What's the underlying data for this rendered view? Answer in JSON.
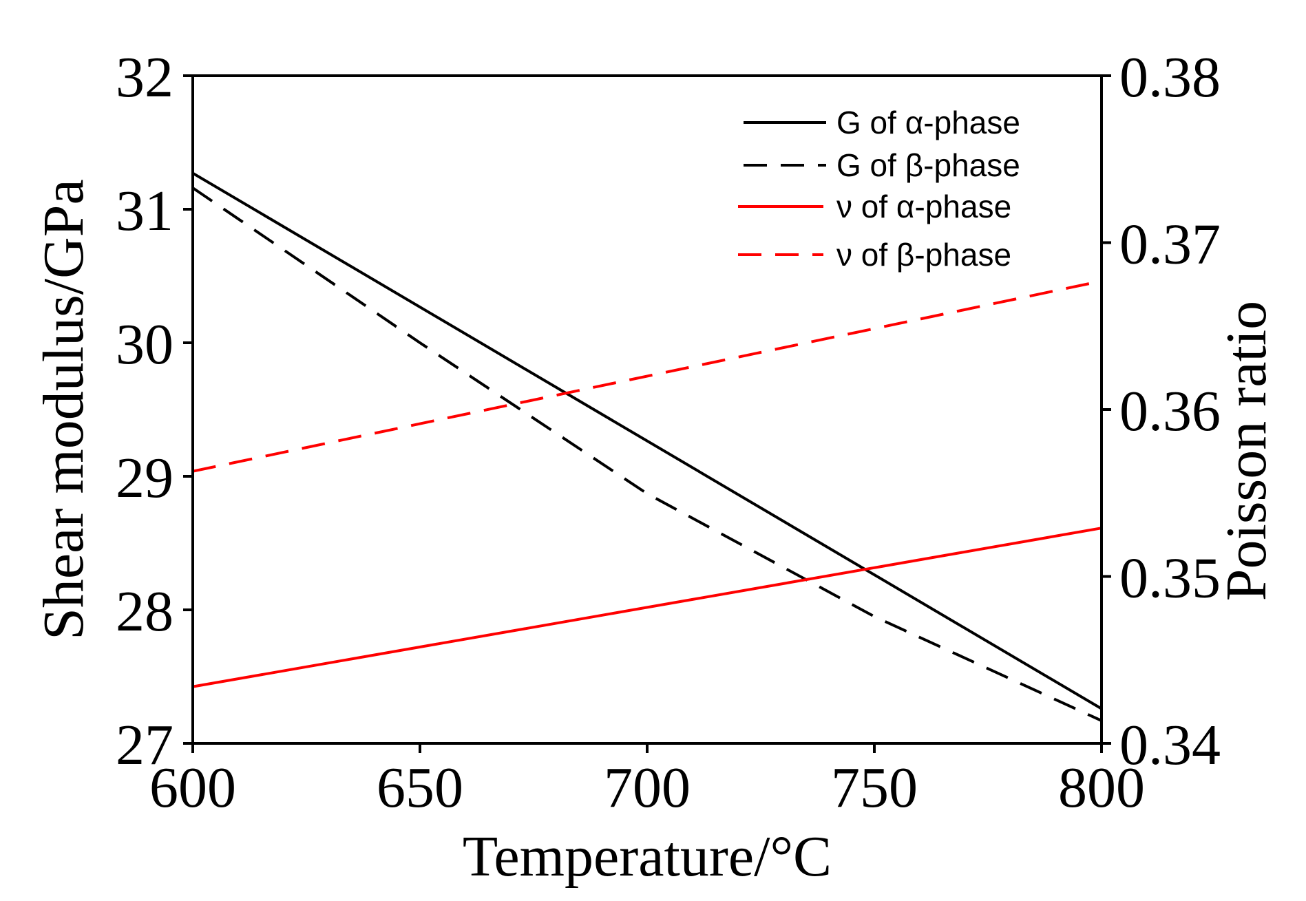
{
  "chart_data": {
    "type": "line",
    "xlabel": "Temperature/°C",
    "ylabel_left": "Shear modulus/GPa",
    "ylabel_right": "Poisson ratio",
    "xlim": [
      600,
      800
    ],
    "ylim_left": [
      27,
      32
    ],
    "ylim_right": [
      0.34,
      0.38
    ],
    "xticks": [
      "600",
      "650",
      "700",
      "750",
      "800"
    ],
    "yticks_left": [
      "27",
      "28",
      "29",
      "30",
      "31",
      "32"
    ],
    "yticks_right": [
      "0.34",
      "0.35",
      "0.36",
      "0.37",
      "0.38"
    ],
    "grid": false,
    "legend_position": "top-right",
    "series": [
      {
        "name": "G of α-phase",
        "axis": "left",
        "style": "solid",
        "color": "#000000",
        "x": [
          600,
          800
        ],
        "y": [
          31.27,
          27.26
        ]
      },
      {
        "name": "G of β-phase",
        "axis": "left",
        "style": "dashed",
        "color": "#000000",
        "x": [
          600,
          650,
          700,
          750,
          800
        ],
        "y": [
          31.16,
          30.0,
          28.87,
          27.95,
          27.17
        ]
      },
      {
        "name": "ν of α-phase",
        "axis": "right",
        "style": "solid",
        "color": "#ff0000",
        "x": [
          600,
          800
        ],
        "y": [
          0.3434,
          0.3529
        ]
      },
      {
        "name": "ν of β-phase",
        "axis": "right",
        "style": "dashed",
        "color": "#ff0000",
        "x": [
          600,
          800
        ],
        "y": [
          0.3563,
          0.3677
        ]
      }
    ]
  }
}
